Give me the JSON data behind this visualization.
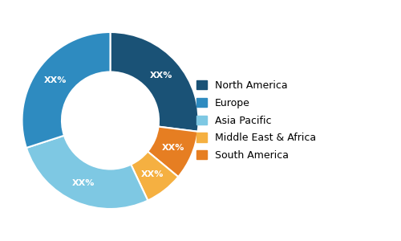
{
  "labels": [
    "North America",
    "Europe",
    "Asia Pacific",
    "Middle East & Africa",
    "South America"
  ],
  "values": [
    27,
    30,
    27,
    7,
    9
  ],
  "colors": [
    "#1a5276",
    "#2e8bc0",
    "#7ec8e3",
    "#f5b041",
    "#e67e22"
  ],
  "label_text": [
    "XX%",
    "XX%",
    "XX%",
    "XX%",
    "XX%"
  ],
  "donut_width": 0.45,
  "legend_labels": [
    "North America",
    "Europe",
    "Asia Pacific",
    "Middle East & Africa",
    "South America"
  ],
  "background_color": "#ffffff",
  "label_fontsize": 8,
  "legend_fontsize": 9,
  "start_angle": 90
}
